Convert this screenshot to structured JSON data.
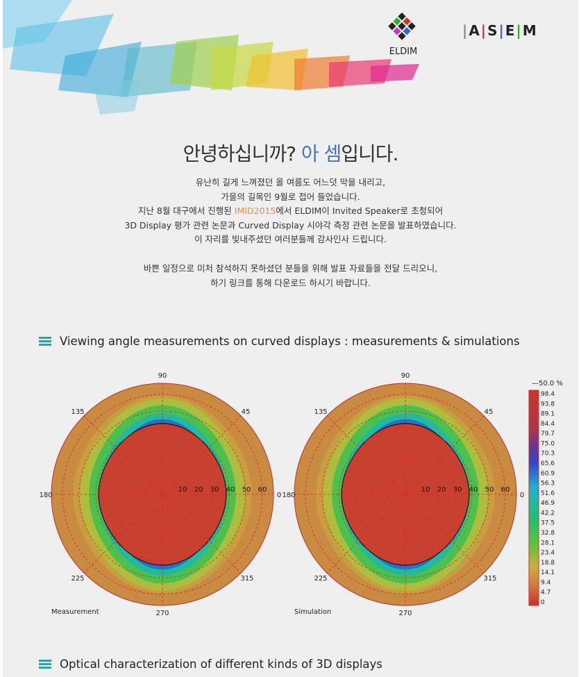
{
  "header": {
    "eldim_logo": "ELDIM",
    "asem_logo": [
      "A",
      "S",
      "E",
      "M"
    ]
  },
  "greeting": {
    "before": "안녕하십니까? ",
    "highlight": "아 셈",
    "after": "입니다."
  },
  "intro": {
    "lines": [
      "유난히 길게 느껴졌던 올 여름도 어느덧 막을 내리고,",
      "가을의 길목인 9월로 접어 들었습니다."
    ],
    "line3": {
      "before": "지난 8월 대구에서 진행된 ",
      "highlight": "IMID2015",
      "after": "에서 ELDIM이 Invited Speaker로 초청되어"
    },
    "lines_after": [
      "3D Display  평가 관련 논문과 Curved Display 시야각 측정 관련 논문을 발표하였습니다.",
      "이 자리를 빛내주셨던 여러분들께 감사인사 드립니다."
    ],
    "closing": [
      "바쁜 일정으로 미처 참석하지 못하셨던 분들을 위해 발표 자료들을 전달 드리오니,",
      "하기 링크를 통해 다운로드 하시기 바랍니다."
    ]
  },
  "section1": {
    "title": "Viewing angle measurements on curved displays : measurements & simulations"
  },
  "polar_axes": {
    "angles": [
      "90",
      "135",
      "45",
      "180",
      "0",
      "225",
      "315",
      "270"
    ],
    "radii": [
      "10",
      "20",
      "30",
      "40",
      "50",
      "60"
    ]
  },
  "plots": [
    {
      "caption": "Measurement"
    },
    {
      "caption": "Simulation"
    }
  ],
  "colorbar": {
    "threshold": "—50.0 %",
    "labels": [
      "98.4",
      "93.8",
      "89.1",
      "84.4",
      "79.7",
      "75.0",
      "70.3",
      "65.6",
      "60.9",
      "56.3",
      "51.6",
      "46.9",
      "42.2",
      "37.5",
      "32.8",
      "28.1",
      "23.4",
      "18.8",
      "14.1",
      "9.4",
      "4.7",
      "0"
    ]
  },
  "section2": {
    "title": "Optical characterization of different kinds of 3D displays"
  }
}
